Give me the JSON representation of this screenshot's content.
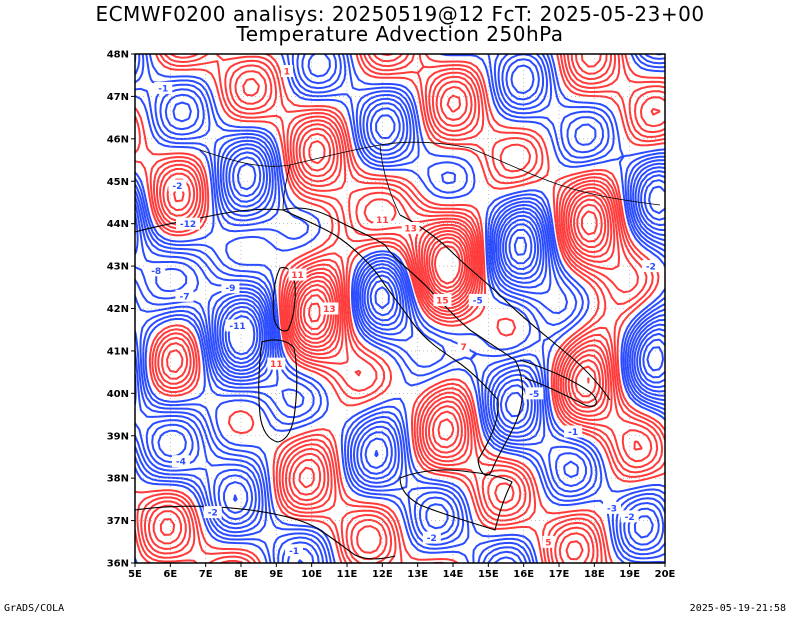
{
  "title": {
    "line1": "ECMWF0200 analisys: 20250519@12 FcT: 2025-05-23+00",
    "line2": "Temperature Advection 250hPa"
  },
  "footer": {
    "left": "GrADS/COLA",
    "right": "2025-05-19-21:58"
  },
  "axes": {
    "lon_labels": [
      "5E",
      "6E",
      "7E",
      "8E",
      "9E",
      "10E",
      "11E",
      "12E",
      "13E",
      "14E",
      "15E",
      "16E",
      "17E",
      "18E",
      "19E",
      "20E"
    ],
    "lat_labels": [
      "48N",
      "47N",
      "46N",
      "45N",
      "44N",
      "43N",
      "42N",
      "41N",
      "40N",
      "39N",
      "38N",
      "37N",
      "36N"
    ],
    "lon_range": [
      5,
      20
    ],
    "lat_range": [
      36,
      48
    ]
  },
  "colors": {
    "warm_advection": "#ff3b3b",
    "cold_advection": "#2b4cff",
    "coastline": "#000000",
    "grid": "#999999"
  },
  "contour_labels": [
    {
      "text": "-1",
      "lon": 5.8,
      "lat": 47.2,
      "sign": "neg"
    },
    {
      "text": "1",
      "lon": 9.3,
      "lat": 47.6,
      "sign": "pos"
    },
    {
      "text": "-2",
      "lon": 6.2,
      "lat": 44.9,
      "sign": "neg"
    },
    {
      "text": "-12",
      "lon": 6.5,
      "lat": 44.0,
      "sign": "neg"
    },
    {
      "text": "-8",
      "lon": 5.6,
      "lat": 42.9,
      "sign": "neg"
    },
    {
      "text": "-7",
      "lon": 6.4,
      "lat": 42.3,
      "sign": "neg"
    },
    {
      "text": "-9",
      "lon": 7.7,
      "lat": 42.5,
      "sign": "neg"
    },
    {
      "text": "-11",
      "lon": 7.9,
      "lat": 41.6,
      "sign": "neg"
    },
    {
      "text": "11",
      "lon": 9.6,
      "lat": 42.8,
      "sign": "pos"
    },
    {
      "text": "13",
      "lon": 10.5,
      "lat": 42.0,
      "sign": "pos"
    },
    {
      "text": "11",
      "lon": 12.0,
      "lat": 44.1,
      "sign": "pos"
    },
    {
      "text": "13",
      "lon": 12.8,
      "lat": 43.9,
      "sign": "pos"
    },
    {
      "text": "15",
      "lon": 13.7,
      "lat": 42.2,
      "sign": "pos"
    },
    {
      "text": "-5",
      "lon": 14.7,
      "lat": 42.2,
      "sign": "neg"
    },
    {
      "text": "7",
      "lon": 14.3,
      "lat": 41.1,
      "sign": "pos"
    },
    {
      "text": "11",
      "lon": 9.0,
      "lat": 40.7,
      "sign": "pos"
    },
    {
      "text": "-5",
      "lon": 16.3,
      "lat": 40.0,
      "sign": "neg"
    },
    {
      "text": "-1",
      "lon": 17.4,
      "lat": 39.1,
      "sign": "neg"
    },
    {
      "text": "-4",
      "lon": 6.3,
      "lat": 38.4,
      "sign": "neg"
    },
    {
      "text": "-2",
      "lon": 7.2,
      "lat": 37.2,
      "sign": "neg"
    },
    {
      "text": "-2",
      "lon": 13.4,
      "lat": 36.6,
      "sign": "neg"
    },
    {
      "text": "-3",
      "lon": 18.5,
      "lat": 37.3,
      "sign": "neg"
    },
    {
      "text": "-2",
      "lon": 19.0,
      "lat": 37.1,
      "sign": "neg"
    },
    {
      "text": "5",
      "lon": 16.7,
      "lat": 36.5,
      "sign": "pos"
    },
    {
      "text": "-1",
      "lon": 9.5,
      "lat": 36.3,
      "sign": "neg"
    },
    {
      "text": "-2",
      "lon": 19.6,
      "lat": 43.0,
      "sign": "neg"
    }
  ]
}
